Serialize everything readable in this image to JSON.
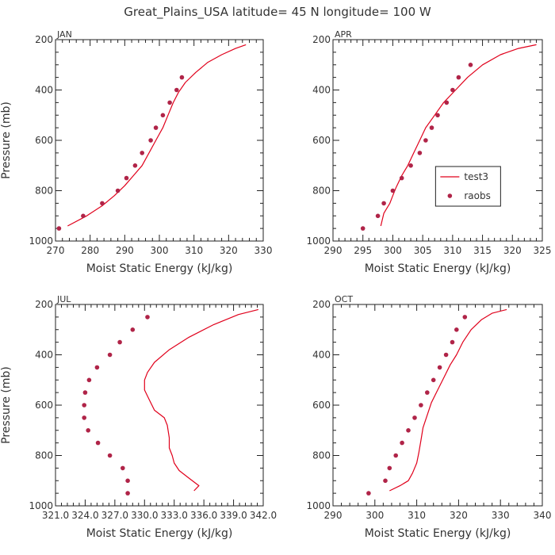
{
  "figure": {
    "title": "Great_Plains_USA   latitude= 45 N longitude= 100 W"
  },
  "colors": {
    "model": "#e0001b",
    "obs": "#b02448",
    "axis": "#222222",
    "text": "#333333"
  },
  "chart_data": [
    {
      "type": "line",
      "title": "JAN",
      "xlabel": "Moist Static Energy (kJ/kg)",
      "ylabel": "Pressure (mb)",
      "xlim": [
        270,
        330
      ],
      "ylim": [
        1000,
        200
      ],
      "y_inverted": true,
      "xticks": [
        270,
        280,
        290,
        300,
        310,
        320,
        330
      ],
      "xtick_labels": [
        "270",
        "280",
        "290",
        "300",
        "310",
        "320",
        "330"
      ],
      "yticks": [
        200,
        400,
        600,
        800,
        1000
      ],
      "ytick_labels": [
        "200",
        "400",
        "600",
        "800",
        "1000"
      ],
      "grid": false,
      "legend": null,
      "series": [
        {
          "key": "test3",
          "style": "line",
          "x": [
            273.5,
            279,
            283.5,
            287,
            290,
            292.5,
            295,
            297,
            299,
            301,
            302.5,
            304,
            305.5,
            307.5,
            310.5,
            314,
            318,
            322,
            325
          ],
          "y": [
            940,
            900,
            860,
            820,
            780,
            740,
            700,
            650,
            600,
            550,
            500,
            450,
            410,
            370,
            330,
            290,
            260,
            235,
            220
          ]
        },
        {
          "key": "raobs",
          "style": "scatter",
          "x": [
            271,
            278,
            283.5,
            288,
            290.5,
            293,
            295,
            297.5,
            299,
            301,
            303,
            305,
            306.5
          ],
          "y": [
            950,
            900,
            850,
            800,
            750,
            700,
            650,
            600,
            550,
            500,
            450,
            400,
            350
          ]
        }
      ]
    },
    {
      "type": "line",
      "title": "APR",
      "xlabel": "Moist Static Energy (kJ/kg)",
      "ylabel": "",
      "xlim": [
        290,
        325
      ],
      "ylim": [
        1000,
        200
      ],
      "y_inverted": true,
      "xticks": [
        290,
        295,
        300,
        305,
        310,
        315,
        320,
        325
      ],
      "xtick_labels": [
        "290",
        "295",
        "300",
        "305",
        "310",
        "315",
        "320",
        "325"
      ],
      "yticks": [
        200,
        400,
        600,
        800,
        1000
      ],
      "ytick_labels": [
        "200",
        "400",
        "600",
        "800",
        "1000"
      ],
      "grid": false,
      "legend": {
        "position": "middle-right",
        "entries": [
          {
            "label": "test3",
            "kind": "line"
          },
          {
            "label": "raobs",
            "kind": "marker"
          }
        ]
      },
      "series": [
        {
          "key": "test3",
          "style": "line",
          "x": [
            298,
            298.5,
            299,
            299.5,
            300,
            300.5,
            301.5,
            302.5,
            303.5,
            304.5,
            305.5,
            307,
            308.5,
            310.5,
            312.5,
            315,
            318,
            321,
            324
          ],
          "y": [
            940,
            890,
            870,
            850,
            820,
            790,
            740,
            700,
            650,
            600,
            550,
            500,
            450,
            400,
            350,
            300,
            260,
            235,
            220
          ]
        },
        {
          "key": "raobs",
          "style": "scatter",
          "x": [
            295,
            297.5,
            298.5,
            300,
            301.5,
            303,
            304.5,
            305.5,
            306.5,
            307.5,
            309,
            310,
            311,
            313
          ],
          "y": [
            950,
            900,
            850,
            800,
            750,
            700,
            650,
            600,
            550,
            500,
            450,
            400,
            350,
            300
          ]
        }
      ]
    },
    {
      "type": "line",
      "title": "JUL",
      "xlabel": "Moist Static Energy (kJ/kg)",
      "ylabel": "Pressure (mb)",
      "xlim": [
        321.0,
        342.0
      ],
      "ylim": [
        1000,
        200
      ],
      "y_inverted": true,
      "xticks": [
        321.0,
        324.0,
        327.0,
        330.0,
        333.0,
        336.0,
        339.0,
        342.0
      ],
      "xtick_labels": [
        "321.0",
        "324.0",
        "327.0",
        "330.0",
        "333.0",
        "336.0",
        "339.0",
        "342.0"
      ],
      "yticks": [
        200,
        400,
        600,
        800,
        1000
      ],
      "ytick_labels": [
        "200",
        "400",
        "600",
        "800",
        "1000"
      ],
      "grid": false,
      "legend": null,
      "series": [
        {
          "key": "test3",
          "style": "line",
          "x": [
            335,
            335.5,
            334.5,
            333.5,
            333,
            332.8,
            332.5,
            332.5,
            332.3,
            332,
            331,
            330.5,
            330,
            330,
            330.3,
            331,
            332.5,
            334.5,
            337,
            339.5,
            341.5
          ],
          "y": [
            940,
            920,
            890,
            860,
            830,
            800,
            770,
            730,
            680,
            650,
            620,
            580,
            540,
            500,
            470,
            430,
            380,
            330,
            280,
            240,
            220
          ]
        },
        {
          "key": "raobs",
          "style": "scatter",
          "x": [
            328.3,
            328.3,
            327.8,
            326.5,
            325.3,
            324.3,
            323.9,
            323.9,
            324,
            324.4,
            325.2,
            326.5,
            327.5,
            328.8,
            330.3
          ],
          "y": [
            950,
            900,
            850,
            800,
            750,
            700,
            650,
            600,
            550,
            500,
            450,
            400,
            350,
            300,
            250
          ]
        }
      ]
    },
    {
      "type": "line",
      "title": "OCT",
      "xlabel": "Moist Static Energy (kJ/kg)",
      "ylabel": "",
      "xlim": [
        290,
        340
      ],
      "ylim": [
        1000,
        200
      ],
      "y_inverted": true,
      "xticks": [
        290,
        300,
        310,
        320,
        330,
        340
      ],
      "xtick_labels": [
        "290",
        "300",
        "310",
        "320",
        "330",
        "340"
      ],
      "yticks": [
        200,
        400,
        600,
        800,
        1000
      ],
      "ytick_labels": [
        "200",
        "400",
        "600",
        "800",
        "1000"
      ],
      "grid": false,
      "legend": null,
      "series": [
        {
          "key": "test3",
          "style": "line",
          "x": [
            303.5,
            306,
            308,
            309,
            310,
            310.5,
            311,
            311.5,
            312.5,
            313.5,
            315,
            316.5,
            318,
            319.5,
            321,
            323,
            325.5,
            328,
            331.5
          ],
          "y": [
            940,
            920,
            900,
            870,
            830,
            790,
            740,
            690,
            640,
            590,
            540,
            490,
            440,
            400,
            350,
            300,
            260,
            235,
            220
          ]
        },
        {
          "key": "raobs",
          "style": "scatter",
          "x": [
            298.5,
            302.5,
            303.5,
            305,
            306.5,
            308,
            309.5,
            311,
            312.5,
            314,
            315.5,
            317,
            318.5,
            319.5,
            321.5
          ],
          "y": [
            950,
            900,
            850,
            800,
            750,
            700,
            650,
            600,
            550,
            500,
            450,
            400,
            350,
            300,
            250
          ]
        }
      ]
    }
  ]
}
